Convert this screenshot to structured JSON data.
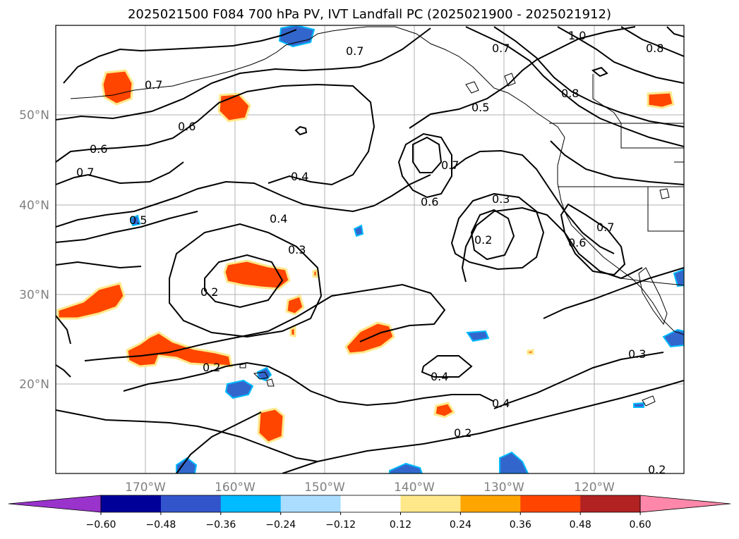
{
  "title": "2025021500 F084 700 hPa PV, IVT Landfall PC (2025021900 - 2025021912)",
  "latitude_labels": [
    "50°N",
    "40°N",
    "30°N",
    "20°N"
  ],
  "longitude_labels": [
    "170°W",
    "160°W",
    "150°W",
    "140°W",
    "130°W",
    "120°W"
  ],
  "contour_labels": [
    "0.7",
    "0.7",
    "0.7",
    "1.0",
    "0.8",
    "0.8",
    "0.5",
    "0.6",
    "0.6",
    "0.7",
    "0.5",
    "0.4",
    "0.7",
    "0.6",
    "0.3",
    "0.4",
    "0.2",
    "0.3",
    "0.7",
    "0.6",
    "0.2",
    "0.2",
    "0.4",
    "0.4",
    "0.3",
    "0.2",
    "0.2"
  ],
  "colorbar": {
    "tick_labels": [
      "−0.60",
      "−0.48",
      "−0.36",
      "−0.24",
      "−0.12",
      "0.12",
      "0.24",
      "0.36",
      "0.48",
      "0.60"
    ],
    "colors": [
      "#9933cc",
      "#000099",
      "#3355cc",
      "#00bbff",
      "#aaddff",
      "#ffffff",
      "#ffe88a",
      "#ffa500",
      "#ff4500",
      "#b22222",
      "#ff88aa"
    ]
  },
  "fill_colors": {
    "positive": "#ff4500",
    "positive_edge": "#ffe88a",
    "negative": "#3366cc",
    "negative_edge": "#00bbff"
  }
}
